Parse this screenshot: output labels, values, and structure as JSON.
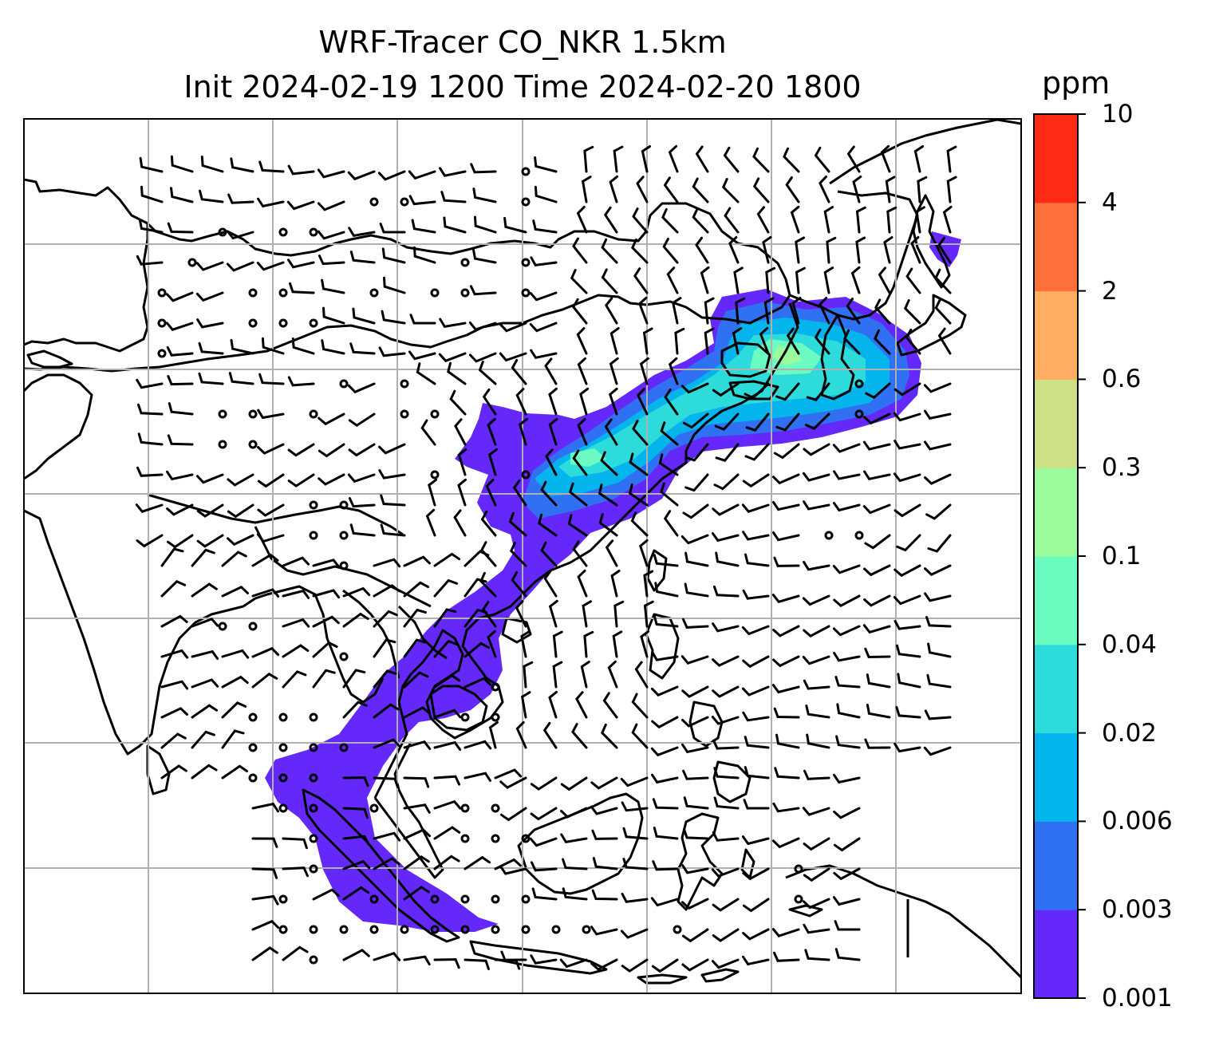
{
  "title": {
    "line1": "WRF-Tracer CO_NKR 1.5km",
    "line2": "Init 2024-02-19 1200 Time 2024-02-20 1800"
  },
  "colorbar": {
    "unit": "ppm",
    "ticks": [
      "0.001",
      "0.003",
      "0.006",
      "0.02",
      "0.04",
      "0.1",
      "0.3",
      "0.6",
      "2",
      "4",
      "10"
    ],
    "colors": [
      "#6429fa",
      "#3070f2",
      "#04b4ec",
      "#2ddcda",
      "#6afcc0",
      "#9cfc9c",
      "#cde086",
      "#ffae63",
      "#ff6f3c",
      "#ff2a16"
    ]
  },
  "map": {
    "grid": "on",
    "field": "tracer concentration (filled contours)",
    "overlay": "wind barbs",
    "coastlines": "on"
  }
}
